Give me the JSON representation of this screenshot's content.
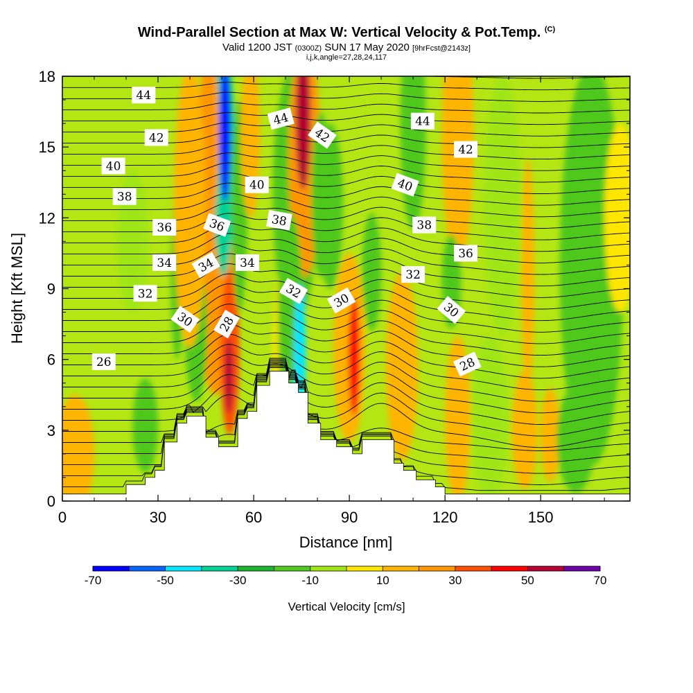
{
  "title": {
    "main": "Wind-Parallel Section at Max W: Vertical Velocity & Pot.Temp.",
    "copyright": "(C)",
    "valid_pre": "Valid 1200 JST",
    "valid_utc": "(0300Z)",
    "valid_post": "SUN 17 May 2020",
    "valid_fcst": "[9hrFcst@2143z]",
    "indices": "i,j,k,angle=27,28,24,117"
  },
  "chart_data": {
    "type": "heatmap",
    "xlabel": "Distance [nm]",
    "ylabel": "Height [Kft MSL]",
    "xlim": [
      0,
      178
    ],
    "ylim": [
      0,
      18
    ],
    "xticks": [
      0,
      30,
      60,
      90,
      120,
      150
    ],
    "yticks": [
      0,
      3,
      6,
      9,
      12,
      15,
      18
    ],
    "colorbar": {
      "label": "Vertical Velocity [cm/s]",
      "ticks": [
        "-70",
        "-50",
        "-30",
        "-10",
        "10",
        "30",
        "50",
        "70"
      ],
      "range": [
        -70,
        70
      ],
      "bins": 14,
      "colors": [
        "#0000ff",
        "#0a64ff",
        "#00e6ff",
        "#00d296",
        "#1eb432",
        "#50c81e",
        "#a0e614",
        "#ffe600",
        "#ffb400",
        "#ff9600",
        "#ff5000",
        "#ff0000",
        "#b40032",
        "#6e00aa"
      ]
    },
    "theta_contours": {
      "name": "Potential temperature",
      "labels": [
        {
          "text": "44",
          "x": 25.5,
          "y": 17.2,
          "angle": 0
        },
        {
          "text": "42",
          "x": 29.5,
          "y": 15.4,
          "angle": 0
        },
        {
          "text": "40",
          "x": 16,
          "y": 14.2,
          "angle": 0
        },
        {
          "text": "38",
          "x": 19.5,
          "y": 12.9,
          "angle": 0
        },
        {
          "text": "36",
          "x": 32,
          "y": 11.6,
          "angle": 0
        },
        {
          "text": "34",
          "x": 32,
          "y": 10.1,
          "angle": 0
        },
        {
          "text": "32",
          "x": 26,
          "y": 8.8,
          "angle": 0
        },
        {
          "text": "30",
          "x": 38.5,
          "y": 7.7,
          "angle": 35
        },
        {
          "text": "26",
          "x": 13,
          "y": 5.9,
          "angle": 0
        },
        {
          "text": "36",
          "x": 48.5,
          "y": 11.7,
          "angle": 20
        },
        {
          "text": "34",
          "x": 45,
          "y": 10.0,
          "angle": -30
        },
        {
          "text": "34",
          "x": 58,
          "y": 10.1,
          "angle": 0
        },
        {
          "text": "28",
          "x": 51.5,
          "y": 7.5,
          "angle": -60
        },
        {
          "text": "40",
          "x": 61,
          "y": 13.4,
          "angle": 0
        },
        {
          "text": "38",
          "x": 68,
          "y": 11.9,
          "angle": 10
        },
        {
          "text": "44",
          "x": 68.5,
          "y": 16.2,
          "angle": -15
        },
        {
          "text": "42",
          "x": 81.5,
          "y": 15.5,
          "angle": 35
        },
        {
          "text": "32",
          "x": 72.5,
          "y": 8.9,
          "angle": 30
        },
        {
          "text": "30",
          "x": 87.5,
          "y": 8.5,
          "angle": -30
        },
        {
          "text": "44",
          "x": 113,
          "y": 16.1,
          "angle": 0
        },
        {
          "text": "42",
          "x": 126.5,
          "y": 14.9,
          "angle": 0
        },
        {
          "text": "40",
          "x": 107.5,
          "y": 13.4,
          "angle": 20
        },
        {
          "text": "38",
          "x": 113.5,
          "y": 11.7,
          "angle": 0
        },
        {
          "text": "36",
          "x": 126.5,
          "y": 10.5,
          "angle": 0
        },
        {
          "text": "32",
          "x": 110,
          "y": 9.6,
          "angle": 0
        },
        {
          "text": "30",
          "x": 122,
          "y": 8.1,
          "angle": 40
        },
        {
          "text": "28",
          "x": 127,
          "y": 5.8,
          "angle": -25
        }
      ]
    },
    "terrain_kft": [
      [
        0,
        0.3
      ],
      [
        20,
        0.3
      ],
      [
        20,
        0.7
      ],
      [
        26,
        0.7
      ],
      [
        26,
        1.0
      ],
      [
        29,
        1.0
      ],
      [
        29,
        1.3
      ],
      [
        32,
        1.3
      ],
      [
        32,
        2.5
      ],
      [
        36,
        2.5
      ],
      [
        36,
        3.3
      ],
      [
        39,
        3.3
      ],
      [
        39,
        3.6
      ],
      [
        45,
        3.6
      ],
      [
        45,
        2.7
      ],
      [
        49,
        2.7
      ],
      [
        49,
        2.3
      ],
      [
        55,
        2.3
      ],
      [
        55,
        3.5
      ],
      [
        58,
        3.5
      ],
      [
        58,
        3.8
      ],
      [
        61,
        3.8
      ],
      [
        61,
        4.9
      ],
      [
        65,
        4.9
      ],
      [
        65,
        5.5
      ],
      [
        71,
        5.5
      ],
      [
        71,
        5.0
      ],
      [
        74,
        5.0
      ],
      [
        74,
        4.6
      ],
      [
        77,
        4.6
      ],
      [
        77,
        3.3
      ],
      [
        81,
        3.3
      ],
      [
        81,
        2.6
      ],
      [
        86,
        2.6
      ],
      [
        86,
        2.3
      ],
      [
        91,
        2.3
      ],
      [
        91,
        2.0
      ],
      [
        94,
        2.0
      ],
      [
        94,
        2.6
      ],
      [
        104,
        2.6
      ],
      [
        104,
        1.6
      ],
      [
        107,
        1.6
      ],
      [
        107,
        1.3
      ],
      [
        111,
        1.3
      ],
      [
        111,
        0.9
      ],
      [
        117,
        0.9
      ],
      [
        117,
        0.6
      ],
      [
        120,
        0.6
      ],
      [
        120,
        0.3
      ],
      [
        178,
        0.3
      ]
    ],
    "w_features_cm_s": [
      {
        "x": 70,
        "y": 6,
        "w": 4,
        "h": 9,
        "value": 5
      },
      {
        "x": 73,
        "y": 13,
        "w": 7,
        "h": 11,
        "value": -12
      },
      {
        "x": 48,
        "y": 10,
        "w": 6,
        "h": 11,
        "value": 25
      },
      {
        "x": 42,
        "y": 7.2,
        "w": 3.5,
        "h": 6,
        "value": -18
      },
      {
        "x": 50.5,
        "y": 14.5,
        "w": 3.5,
        "h": 10,
        "value": -35
      },
      {
        "x": 51,
        "y": 15.7,
        "w": 1.8,
        "h": 6,
        "value": -70
      },
      {
        "x": 46,
        "y": 15.5,
        "w": 3,
        "h": 8,
        "value": 28
      },
      {
        "x": 52.5,
        "y": 6.3,
        "w": 3,
        "h": 7,
        "value": 38
      },
      {
        "x": 52.2,
        "y": 5.3,
        "w": 1.3,
        "h": 3.2,
        "value": 55
      },
      {
        "x": 55.5,
        "y": 12.5,
        "w": 2.5,
        "h": 9,
        "value": -14
      },
      {
        "x": 59,
        "y": 15.5,
        "w": 3,
        "h": 7,
        "value": 14
      },
      {
        "x": 76,
        "y": 14.5,
        "w": 5,
        "h": 10,
        "value": 28
      },
      {
        "x": 75.5,
        "y": 16.2,
        "w": 2.3,
        "h": 6,
        "value": 55
      },
      {
        "x": 81,
        "y": 13,
        "w": 3,
        "h": 7,
        "value": -15
      },
      {
        "x": 71.5,
        "y": 7.8,
        "w": 4,
        "h": 9,
        "value": -12
      },
      {
        "x": 74.5,
        "y": 6.2,
        "w": 1.8,
        "h": 6,
        "value": -42
      },
      {
        "x": 90,
        "y": 6.5,
        "w": 5,
        "h": 8,
        "value": 16
      },
      {
        "x": 91.5,
        "y": 6.1,
        "w": 1.8,
        "h": 5,
        "value": 45
      },
      {
        "x": 84,
        "y": 12.5,
        "w": 4,
        "h": 7,
        "value": -14
      },
      {
        "x": 97,
        "y": 9.7,
        "w": 3,
        "h": 5,
        "value": -13
      },
      {
        "x": 106.5,
        "y": 5.7,
        "w": 5,
        "h": 8,
        "value": 15
      },
      {
        "x": 110,
        "y": 16,
        "w": 4,
        "h": 9,
        "value": -11
      },
      {
        "x": 124,
        "y": 15.5,
        "w": 5,
        "h": 11,
        "value": 18
      },
      {
        "x": 124,
        "y": 3.5,
        "w": 4,
        "h": 7,
        "value": 11
      },
      {
        "x": 122,
        "y": 9.3,
        "w": 3,
        "h": 4,
        "value": -15
      },
      {
        "x": 134,
        "y": 3.5,
        "w": 6,
        "h": 7,
        "value": -10
      },
      {
        "x": 138,
        "y": 12.5,
        "w": 6,
        "h": 11,
        "value": -10
      },
      {
        "x": 145,
        "y": 3,
        "w": 4,
        "h": 5,
        "value": 11
      },
      {
        "x": 146,
        "y": 9.5,
        "w": 2,
        "h": 10,
        "value": 12
      },
      {
        "x": 153,
        "y": 2.8,
        "w": 3,
        "h": 4,
        "value": 18
      },
      {
        "x": 161,
        "y": 2.6,
        "w": 6,
        "h": 4.5,
        "value": -18
      },
      {
        "x": 166,
        "y": 10,
        "w": 10,
        "h": 17,
        "value": -11
      },
      {
        "x": 175,
        "y": 12,
        "w": 5,
        "h": 8,
        "value": 9
      },
      {
        "x": 36,
        "y": 9.5,
        "w": 2,
        "h": 7,
        "value": -11
      },
      {
        "x": 22,
        "y": 11,
        "w": 5,
        "h": 6,
        "value": -10
      },
      {
        "x": 4,
        "y": 2,
        "w": 6,
        "h": 5,
        "value": 12
      },
      {
        "x": 26,
        "y": 3.2,
        "w": 4,
        "h": 4,
        "value": -11
      },
      {
        "x": 40,
        "y": 12.5,
        "w": 5,
        "h": 12,
        "value": 13
      }
    ]
  }
}
